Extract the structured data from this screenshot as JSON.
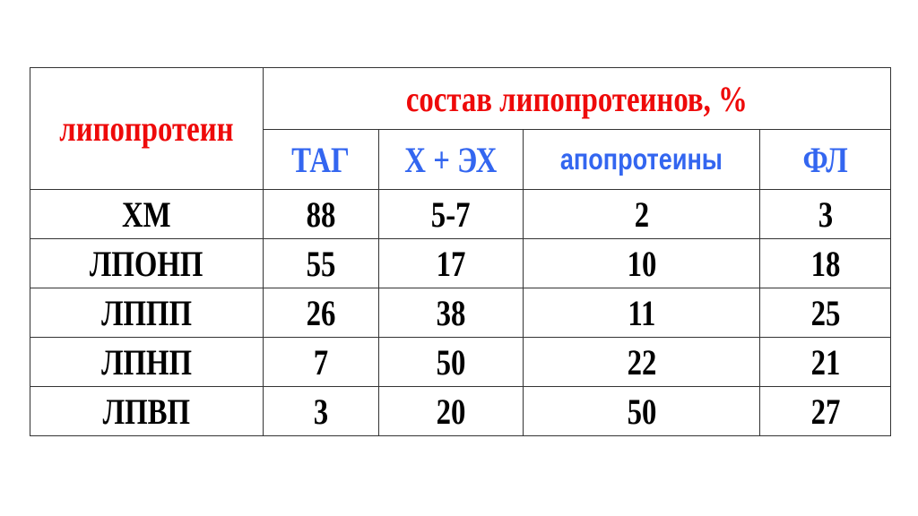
{
  "table": {
    "row_header": "липопротеин",
    "group_header": "состав липопротеинов, %",
    "columns": [
      "ТАГ",
      "Х + ЭХ",
      "апопротеины",
      "ФЛ"
    ],
    "colors": {
      "header_red": "#ee0a0a",
      "header_blue": "#3366f0"
    },
    "rows": [
      {
        "name": "ХМ",
        "values": [
          "88",
          "5-7",
          "2",
          "3"
        ]
      },
      {
        "name": "ЛПОНП",
        "values": [
          "55",
          "17",
          "10",
          "18"
        ]
      },
      {
        "name": "ЛППП",
        "values": [
          "26",
          "38",
          "11",
          "25"
        ]
      },
      {
        "name": "ЛПНП",
        "values": [
          "7",
          "50",
          "22",
          "21"
        ]
      },
      {
        "name": "ЛПВП",
        "values": [
          "3",
          "20",
          "50",
          "27"
        ]
      }
    ]
  }
}
